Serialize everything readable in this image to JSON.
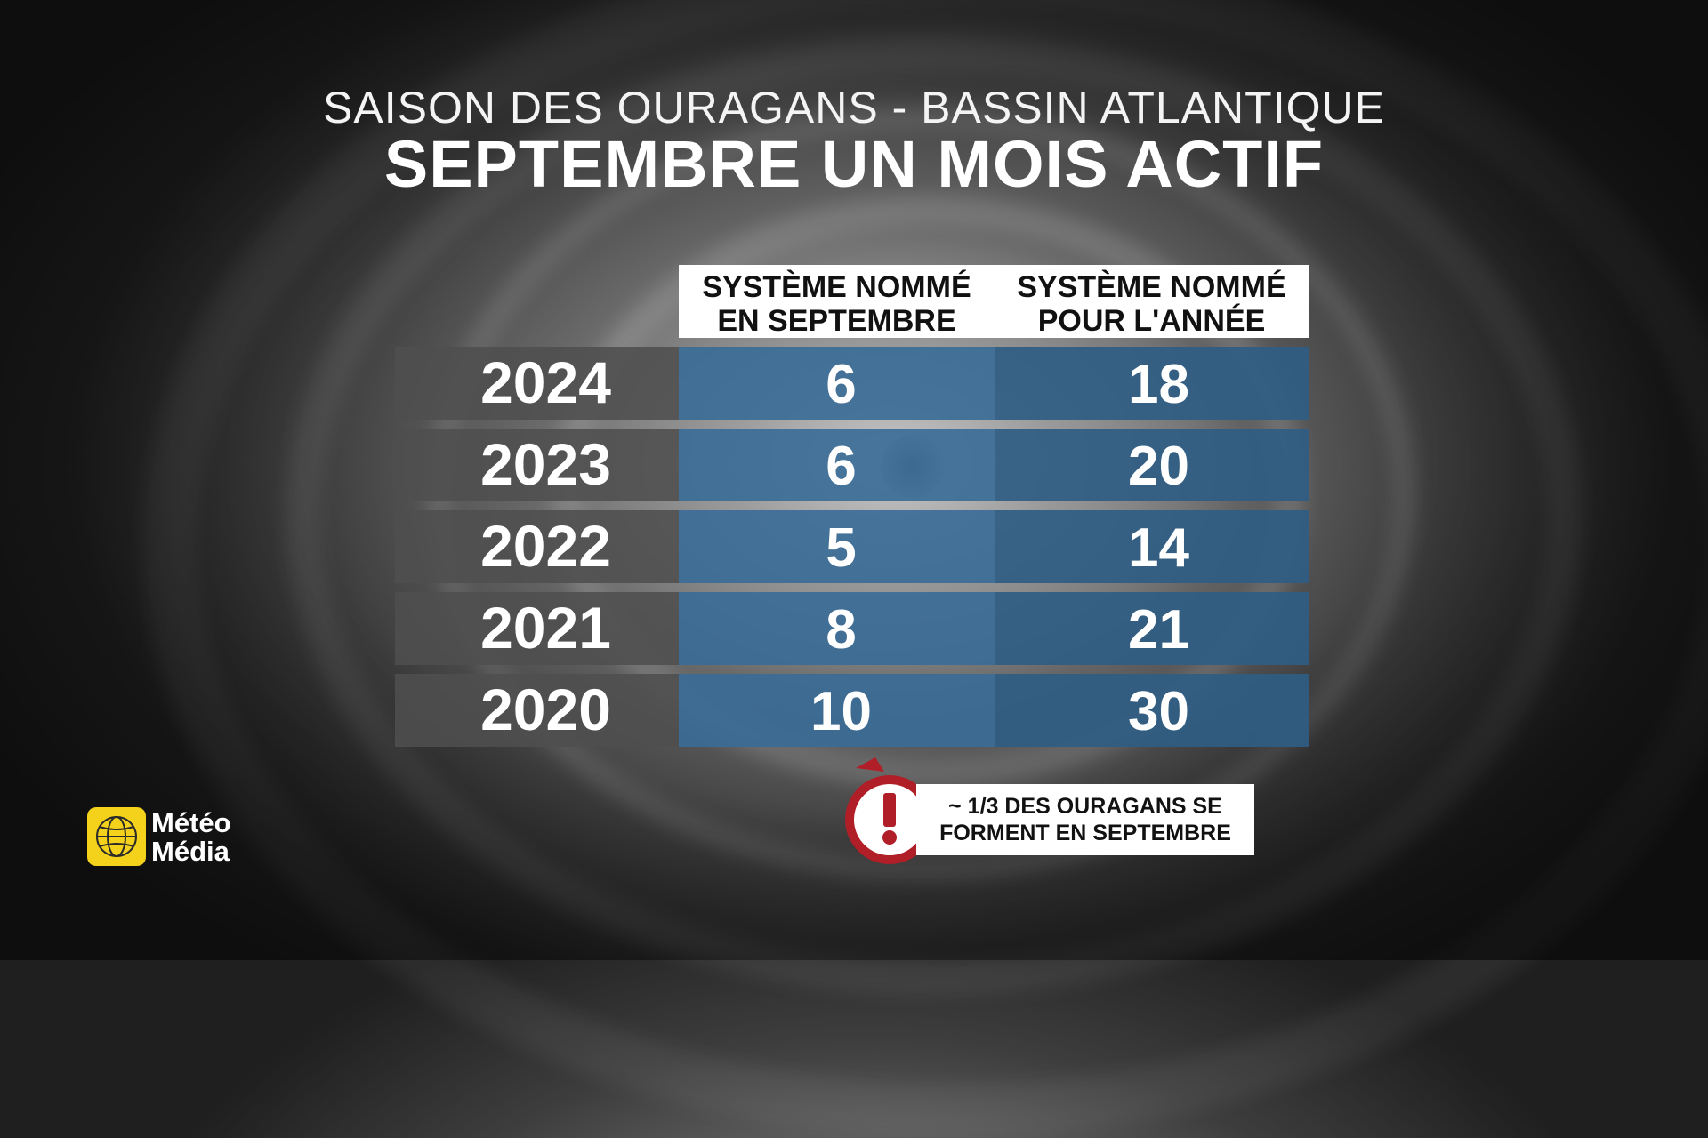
{
  "title": {
    "top": "SAISON DES OURAGANS - BASSIN ATLANTIQUE",
    "main": "SEPTEMBRE UN MOIS ACTIF"
  },
  "chart_data": {
    "type": "table",
    "columns": [
      {
        "line1": "SYSTÈME NOMMÉ",
        "line2": "EN SEPTEMBRE"
      },
      {
        "line1": "SYSTÈME NOMMÉ",
        "line2": "POUR L'ANNÉE"
      }
    ],
    "rows": [
      {
        "year": "2024",
        "september": "6",
        "annual": "18"
      },
      {
        "year": "2023",
        "september": "6",
        "annual": "20"
      },
      {
        "year": "2022",
        "september": "5",
        "annual": "14"
      },
      {
        "year": "2021",
        "september": "8",
        "annual": "21"
      },
      {
        "year": "2020",
        "september": "10",
        "annual": "30"
      }
    ]
  },
  "note": {
    "line1": "~ 1/3 DES OURAGANS SE",
    "line2": "FORMENT EN SEPTEMBRE"
  },
  "logo": {
    "line1": "Météo",
    "line2": "Média"
  },
  "colors": {
    "year_cell": "#4f4f4f",
    "col_sept": "#3a6c96",
    "col_annual": "#2f5d83",
    "badge_red": "#b01e28"
  }
}
